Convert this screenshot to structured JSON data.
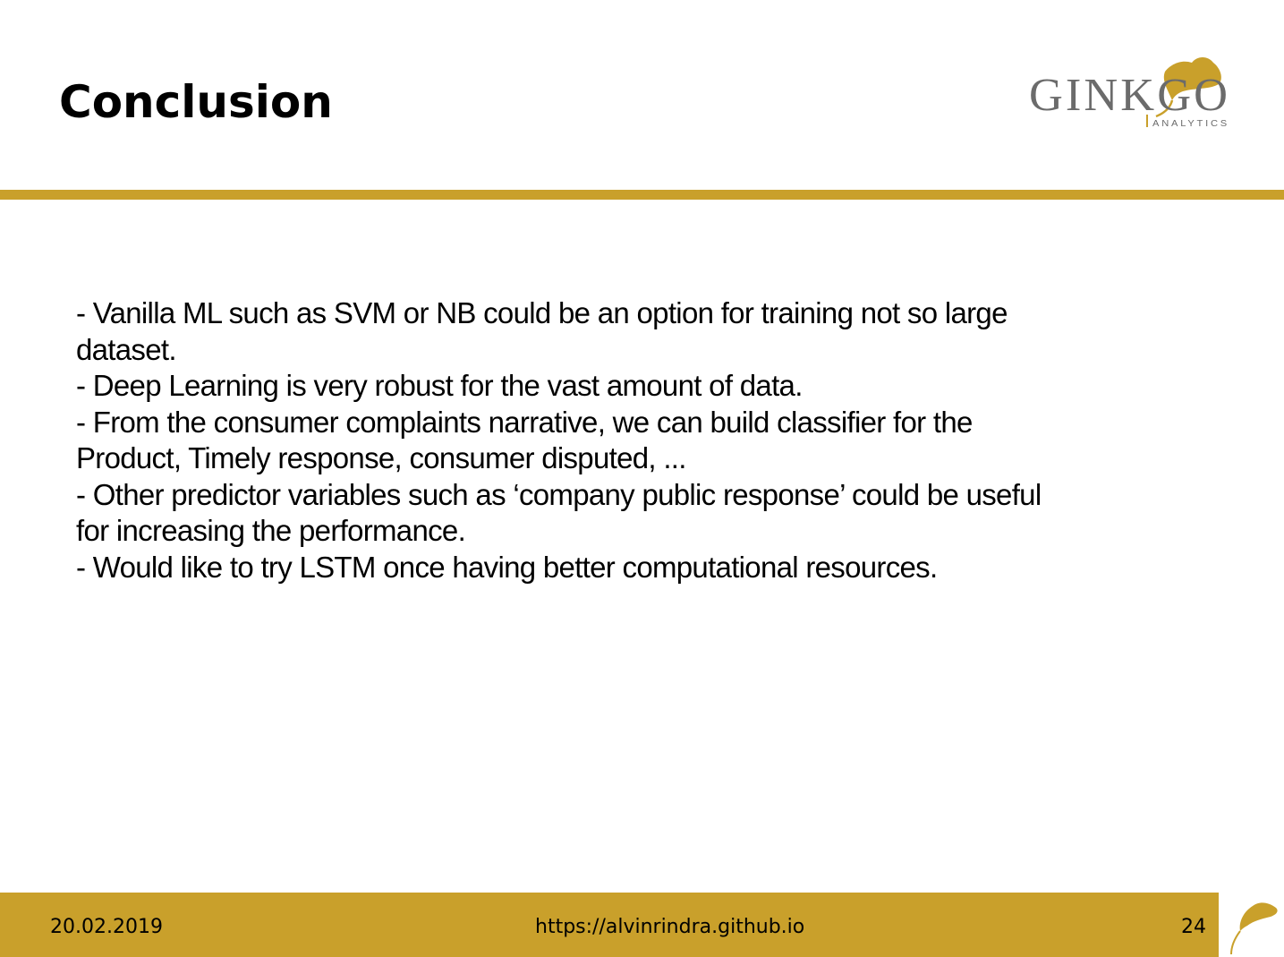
{
  "slide": {
    "title": "Conclusion",
    "logo": {
      "name": "GINKGO",
      "tagline": "ANALYTICS",
      "icon": "ginkgo-leaf-icon"
    },
    "bullets": [
      "- Vanilla ML such as SVM or NB could be an option for training not so large",
      "dataset.",
      "- Deep Learning is very robust for the vast amount of data.",
      "- From the consumer complaints narrative, we can build classifier for the",
      "Product, Timely response, consumer disputed, ...",
      "- Other predictor variables such as ‘company public response’ could be useful",
      "for increasing the performance.",
      "- Would like to try LSTM once having better computational resources."
    ]
  },
  "footer": {
    "date": "20.02.2019",
    "url": "https://alvinrindra.github.io",
    "page_number": "24",
    "icon": "ginkgo-leaf-icon"
  },
  "colors": {
    "accent_gold": "#c9a02b",
    "logo_gray": "#6b6b6b",
    "text": "#000000",
    "background": "#ffffff"
  }
}
